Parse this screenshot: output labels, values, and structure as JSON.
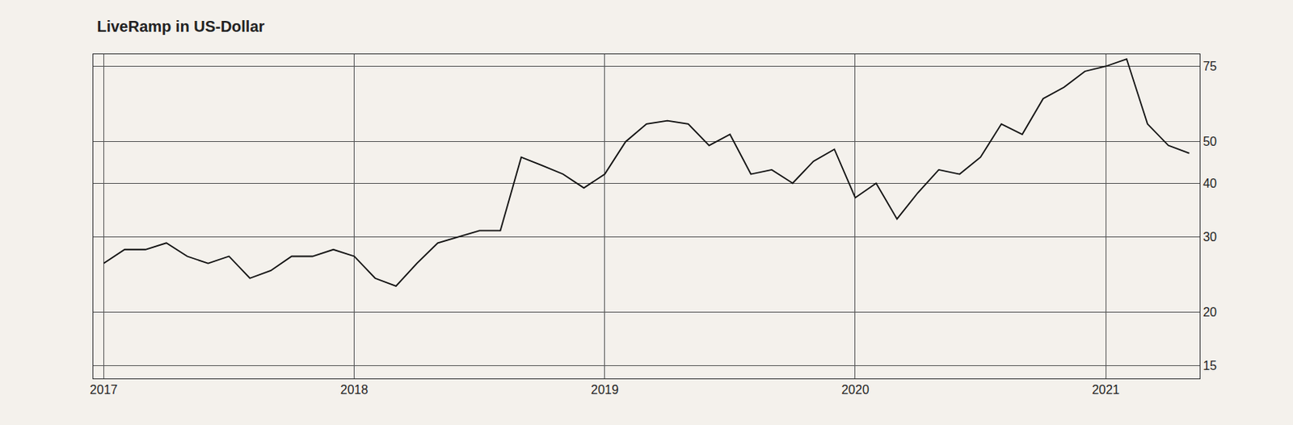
{
  "chart_data": {
    "type": "line",
    "title": "LiveRamp in US-Dollar",
    "categories": [
      "2017",
      null,
      null,
      null,
      null,
      null,
      null,
      null,
      null,
      null,
      null,
      null,
      "2018",
      null,
      null,
      null,
      null,
      null,
      null,
      null,
      null,
      null,
      null,
      null,
      "2019",
      null,
      null,
      null,
      null,
      null,
      null,
      null,
      null,
      null,
      null,
      null,
      "2020",
      null,
      null,
      null,
      null,
      null,
      null,
      null,
      null,
      null,
      null,
      null,
      "2021",
      null,
      null,
      null,
      null
    ],
    "values": [
      26,
      28,
      28,
      29,
      27,
      26,
      27,
      24,
      25,
      27,
      27,
      28,
      27,
      24,
      23,
      26,
      29,
      30,
      31,
      31,
      46,
      44,
      42,
      39,
      42,
      50,
      55,
      56,
      55,
      49,
      52,
      42,
      43,
      40,
      45,
      48,
      37,
      40,
      33,
      38,
      43,
      42,
      46,
      55,
      52,
      63,
      67,
      73,
      75,
      78,
      55,
      49,
      47
    ],
    "color": "#111111",
    "log": "y",
    "ylim": [
      14,
      80
    ],
    "yticks": [
      15,
      20,
      30,
      40,
      50,
      75
    ],
    "grid": true
  }
}
